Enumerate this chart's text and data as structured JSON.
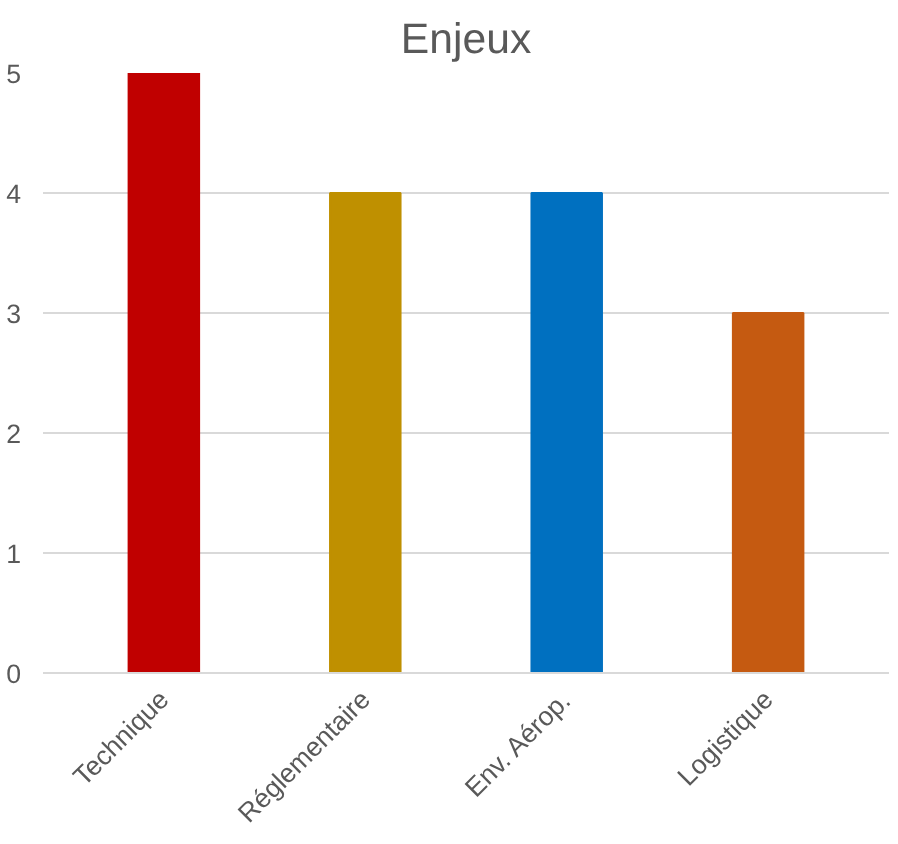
{
  "chart_data": {
    "type": "bar",
    "title": "Enjeux",
    "categories": [
      "Technique",
      "Réglementaire",
      "Env. Aérop.",
      "Logistique"
    ],
    "values": [
      5,
      4,
      4,
      3
    ],
    "colors": [
      "#c00000",
      "#bf9000",
      "#0070c0",
      "#c55a11"
    ],
    "ylim": [
      0,
      5
    ],
    "yticks": [
      0,
      1,
      2,
      3,
      4,
      5
    ],
    "grid": "y"
  }
}
